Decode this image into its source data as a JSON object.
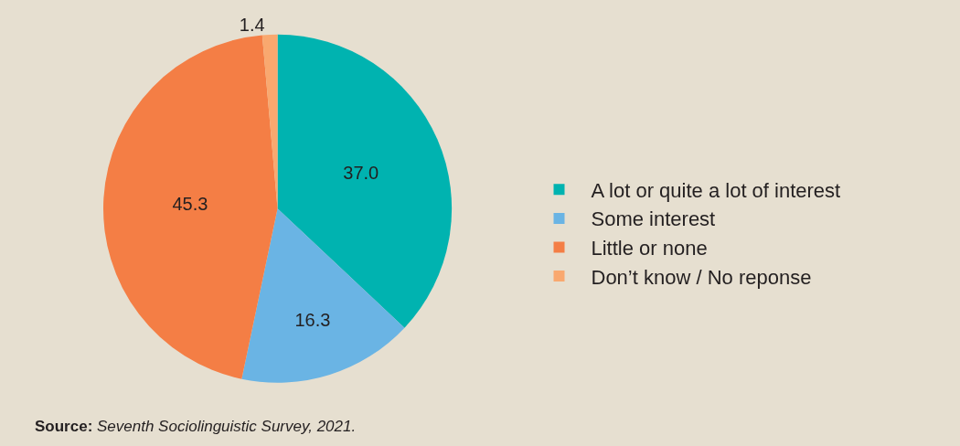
{
  "chart_data": {
    "type": "pie",
    "categories": [
      "A lot or quite a lot of interest",
      "Some interest",
      "Little or none",
      "Don’t know / No reponse"
    ],
    "values": [
      37.0,
      16.3,
      45.3,
      1.4
    ],
    "value_labels": [
      "37.0",
      "16.3",
      "45.3",
      "1.4"
    ],
    "colors": [
      "#00b3b0",
      "#6ab4e4",
      "#f47e45",
      "#f9a86f"
    ],
    "legend": "right",
    "annotations": [
      "Source: Seventh Sociolinguistic Survey, 2021."
    ]
  }
}
